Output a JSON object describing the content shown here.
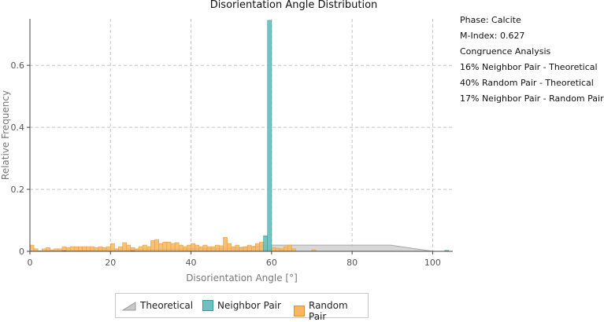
{
  "chart_data": {
    "type": "bar",
    "title": "Disorientation Angle Distribution",
    "xlabel": "Disorientation Angle [°]",
    "ylabel": "Relative Frequency",
    "xlim": [
      0,
      105
    ],
    "ylim": [
      0,
      0.75
    ],
    "xticks": [
      0,
      20,
      40,
      60,
      80,
      100
    ],
    "yticks": [
      0,
      0.2,
      0.4,
      0.6
    ],
    "bin_width": 1,
    "grid": true,
    "legend_position": "bottom",
    "series": [
      {
        "name": "Theoretical",
        "kind": "area",
        "color": "#c9c9c9",
        "x": [
          0,
          1,
          10,
          30,
          50,
          60,
          89.5,
          100,
          104
        ],
        "y": [
          0,
          0.001,
          0.003,
          0.006,
          0.01,
          0.02,
          0.02,
          0.0,
          0.0
        ]
      },
      {
        "name": "Neighbor Pair",
        "kind": "bar",
        "color": "#6fc0c0",
        "x": [
          8,
          25,
          58,
          59,
          103
        ],
        "y": [
          0.002,
          0.002,
          0.05,
          0.745,
          0.003
        ]
      },
      {
        "name": "Random Pair",
        "kind": "bar",
        "color": "#f9b65e",
        "x": [
          0,
          1,
          3,
          4,
          5,
          6,
          7,
          8,
          9,
          10,
          11,
          12,
          13,
          14,
          15,
          16,
          17,
          18,
          19,
          20,
          21,
          22,
          23,
          24,
          25,
          26,
          27,
          28,
          29,
          30,
          31,
          32,
          33,
          34,
          35,
          36,
          37,
          38,
          39,
          40,
          41,
          42,
          43,
          44,
          45,
          46,
          47,
          48,
          49,
          50,
          51,
          52,
          53,
          54,
          55,
          56,
          57,
          58,
          59,
          60,
          61,
          62,
          63,
          64,
          65,
          70
        ],
        "y": [
          0.02,
          0.008,
          0.008,
          0.012,
          0.005,
          0.008,
          0.008,
          0.015,
          0.012,
          0.015,
          0.015,
          0.015,
          0.015,
          0.015,
          0.015,
          0.012,
          0.015,
          0.012,
          0.015,
          0.025,
          0.008,
          0.015,
          0.028,
          0.02,
          0.012,
          0.008,
          0.015,
          0.02,
          0.015,
          0.035,
          0.038,
          0.025,
          0.03,
          0.03,
          0.025,
          0.028,
          0.02,
          0.015,
          0.02,
          0.025,
          0.02,
          0.015,
          0.02,
          0.015,
          0.015,
          0.02,
          0.018,
          0.045,
          0.025,
          0.015,
          0.02,
          0.012,
          0.015,
          0.02,
          0.015,
          0.025,
          0.03,
          0.02,
          0.015,
          0.012,
          0.01,
          0.008,
          0.015,
          0.02,
          0.008,
          0.005
        ]
      }
    ]
  },
  "info": {
    "phase": "Phase: Calcite",
    "mindex": "M-Index: 0.627",
    "congruence_title": "Congruence Analysis",
    "line1": "16% Neighbor Pair - Theoretical",
    "line2": "40% Random Pair - Theoretical",
    "line3": "17% Neighbor Pair  - Random Pair"
  },
  "legend": {
    "theoretical": "Theoretical",
    "neighbor": "Neighbor Pair",
    "random": "Random Pair"
  }
}
